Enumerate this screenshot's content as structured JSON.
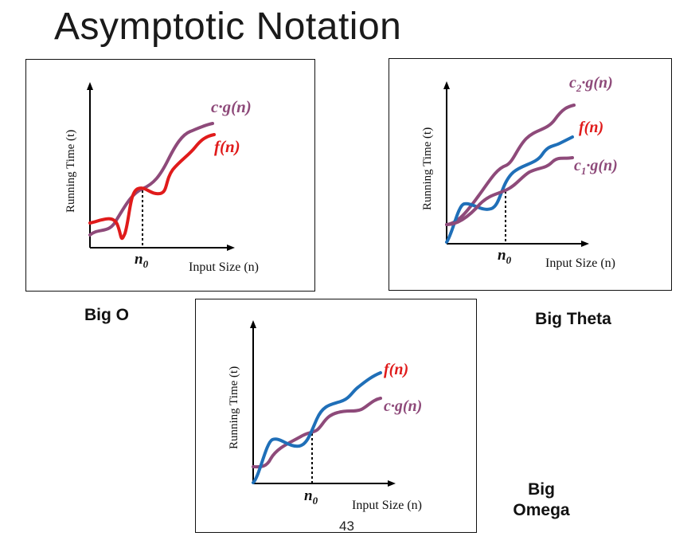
{
  "slide": {
    "title": "Asymptotic Notation",
    "page_number": "43"
  },
  "panels": [
    {
      "id": "big-o",
      "caption": "Big O",
      "y_axis_label": "Running Time  (t)",
      "x_axis_label": "Input Size (n)",
      "threshold_label": "n",
      "threshold_subscript": "0",
      "curves": [
        {
          "name": "cg",
          "label": "c·g(n)",
          "color": "#8e4a7a"
        },
        {
          "name": "f",
          "label": "f(n)",
          "color": "#e01b1b"
        }
      ]
    },
    {
      "id": "big-theta",
      "caption": "Big Theta",
      "y_axis_label": "Running Time  (t)",
      "x_axis_label": "Input Size (n)",
      "threshold_label": "n",
      "threshold_subscript": "0",
      "curves": [
        {
          "name": "c2g",
          "label_prefix": "c",
          "label_sub": "2",
          "label_suffix": "·g(n)",
          "color": "#8e4a7a"
        },
        {
          "name": "f",
          "label": "f(n)",
          "color": "#1f6fb8",
          "label_color": "#e01b1b"
        },
        {
          "name": "c1g",
          "label_prefix": "c",
          "label_sub": "1",
          "label_suffix": "·g(n)",
          "color": "#8e4a7a"
        }
      ]
    },
    {
      "id": "big-omega",
      "caption_line1": "Big",
      "caption_line2": "Omega",
      "y_axis_label": "Running Time  (t)",
      "x_axis_label": "Input Size (n)",
      "threshold_label": "n",
      "threshold_subscript": "0",
      "curves": [
        {
          "name": "f",
          "label": "f(n)",
          "color": "#1f6fb8",
          "label_color": "#e01b1b"
        },
        {
          "name": "cg",
          "label": "c·g(n)",
          "color": "#8e4a7a"
        }
      ]
    }
  ]
}
